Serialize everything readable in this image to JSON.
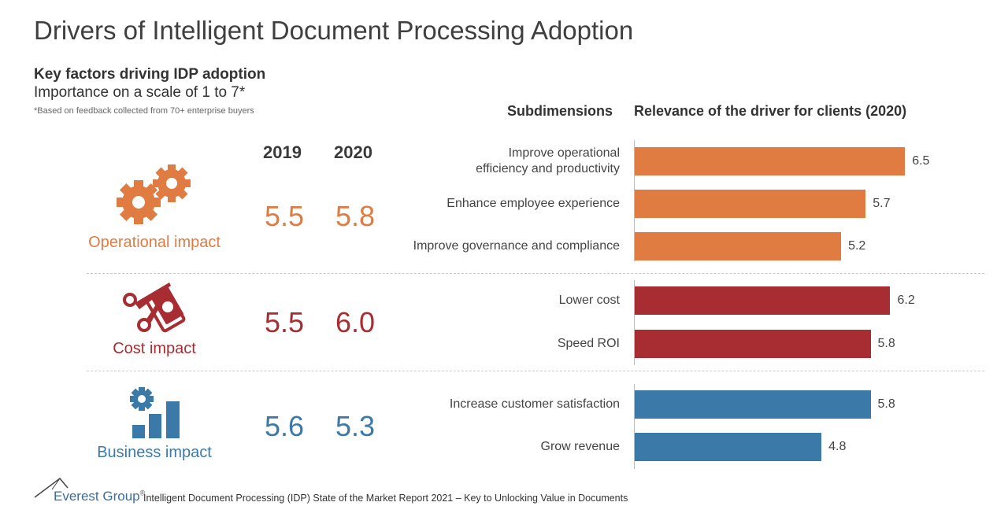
{
  "title": "Drivers of Intelligent Document Processing Adoption",
  "subtitle": "Key factors driving IDP adoption",
  "scale_note": "Importance on a scale of 1 to 7*",
  "footnote": "*Based on feedback collected from 70+ enterprise buyers",
  "headers": {
    "year1": "2019",
    "year2": "2020",
    "subdimensions": "Subdimensions",
    "relevance": "Relevance of the driver for clients (2020)"
  },
  "groups": [
    {
      "label": "Operational impact",
      "icon": "gears-icon",
      "color": "#E07B42",
      "score_2019": "5.5",
      "score_2020": "5.8"
    },
    {
      "label": "Cost impact",
      "icon": "scissors-money-icon",
      "color": "#A82D33",
      "score_2019": "5.5",
      "score_2020": "6.0"
    },
    {
      "label": "Business impact",
      "icon": "gear-bar-chart-icon",
      "color": "#3B7AA8",
      "score_2019": "5.6",
      "score_2020": "5.3"
    }
  ],
  "chart_data": {
    "type": "bar",
    "orientation": "horizontal",
    "title": "Relevance of the driver for clients (2020)",
    "xlim": [
      1,
      7
    ],
    "grid": false,
    "categories": [
      "Improve operational efficiency and productivity",
      "Enhance employee experience",
      "Improve governance and compliance",
      "Lower cost",
      "Speed ROI",
      "Increase customer satisfaction",
      "Grow revenue"
    ],
    "category_lines": [
      [
        "Improve operational",
        "efficiency and productivity"
      ],
      [
        "Enhance employee experience"
      ],
      [
        "Improve governance and compliance"
      ],
      [
        "Lower cost"
      ],
      [
        "Speed ROI"
      ],
      [
        "Increase customer satisfaction"
      ],
      [
        "Grow revenue"
      ]
    ],
    "values": [
      6.5,
      5.7,
      5.2,
      6.2,
      5.8,
      5.8,
      4.8
    ],
    "value_labels": [
      "6.5",
      "5.7",
      "5.2",
      "6.2",
      "5.8",
      "5.8",
      "4.8"
    ],
    "group_index": [
      0,
      0,
      0,
      1,
      1,
      2,
      2
    ]
  },
  "footer": {
    "brand": "Everest Group",
    "reg": "®",
    "text": "Intelligent Document Processing (IDP) State of the Market Report 2021 – Key to Unlocking Value in Documents"
  }
}
